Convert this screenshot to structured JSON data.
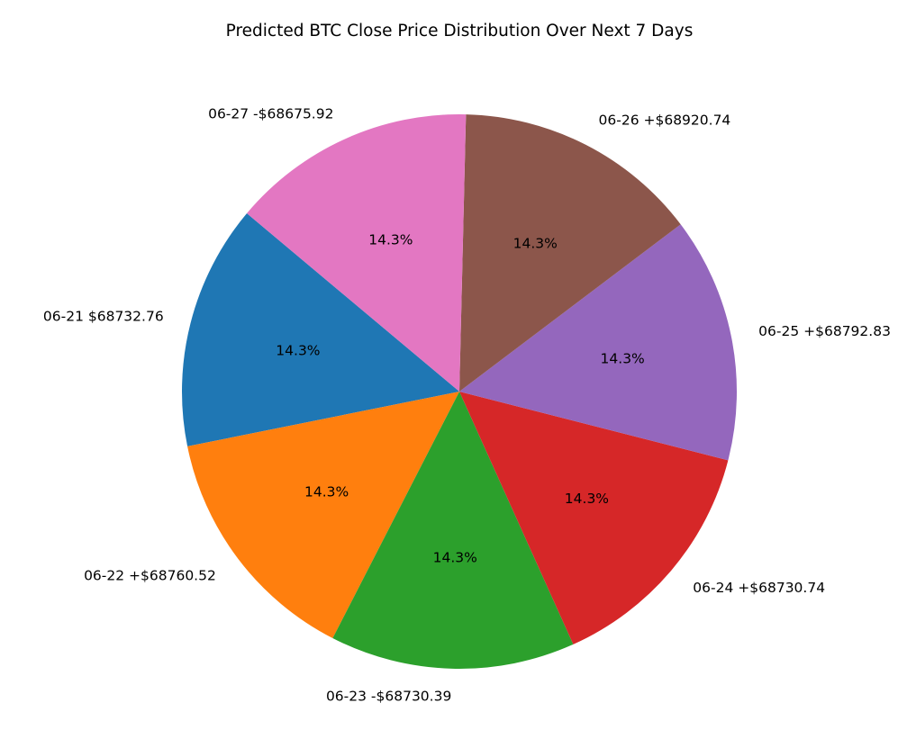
{
  "chart_data": {
    "type": "pie",
    "title": "Predicted BTC Close Price Distribution Over Next 7 Days",
    "start_angle_deg": 140,
    "counterclockwise": true,
    "slices": [
      {
        "label": "06-21 $68732.76",
        "value": 68732.76,
        "percent_label": "14.3%",
        "color": "#1f77b4"
      },
      {
        "label": "06-22 +$68760.52",
        "value": 68760.52,
        "percent_label": "14.3%",
        "color": "#ff7f0e"
      },
      {
        "label": "06-23 -$68730.39",
        "value": 68730.39,
        "percent_label": "14.3%",
        "color": "#2ca02c"
      },
      {
        "label": "06-24 +$68730.74",
        "value": 68730.74,
        "percent_label": "14.3%",
        "color": "#d62728"
      },
      {
        "label": "06-25 +$68792.83",
        "value": 68792.83,
        "percent_label": "14.3%",
        "color": "#9467bd"
      },
      {
        "label": "06-26 +$68920.74",
        "value": 68920.74,
        "percent_label": "14.3%",
        "color": "#8c564b"
      },
      {
        "label": "06-27 -$68675.92",
        "value": 68675.92,
        "percent_label": "14.3%",
        "color": "#e377c2"
      }
    ]
  }
}
